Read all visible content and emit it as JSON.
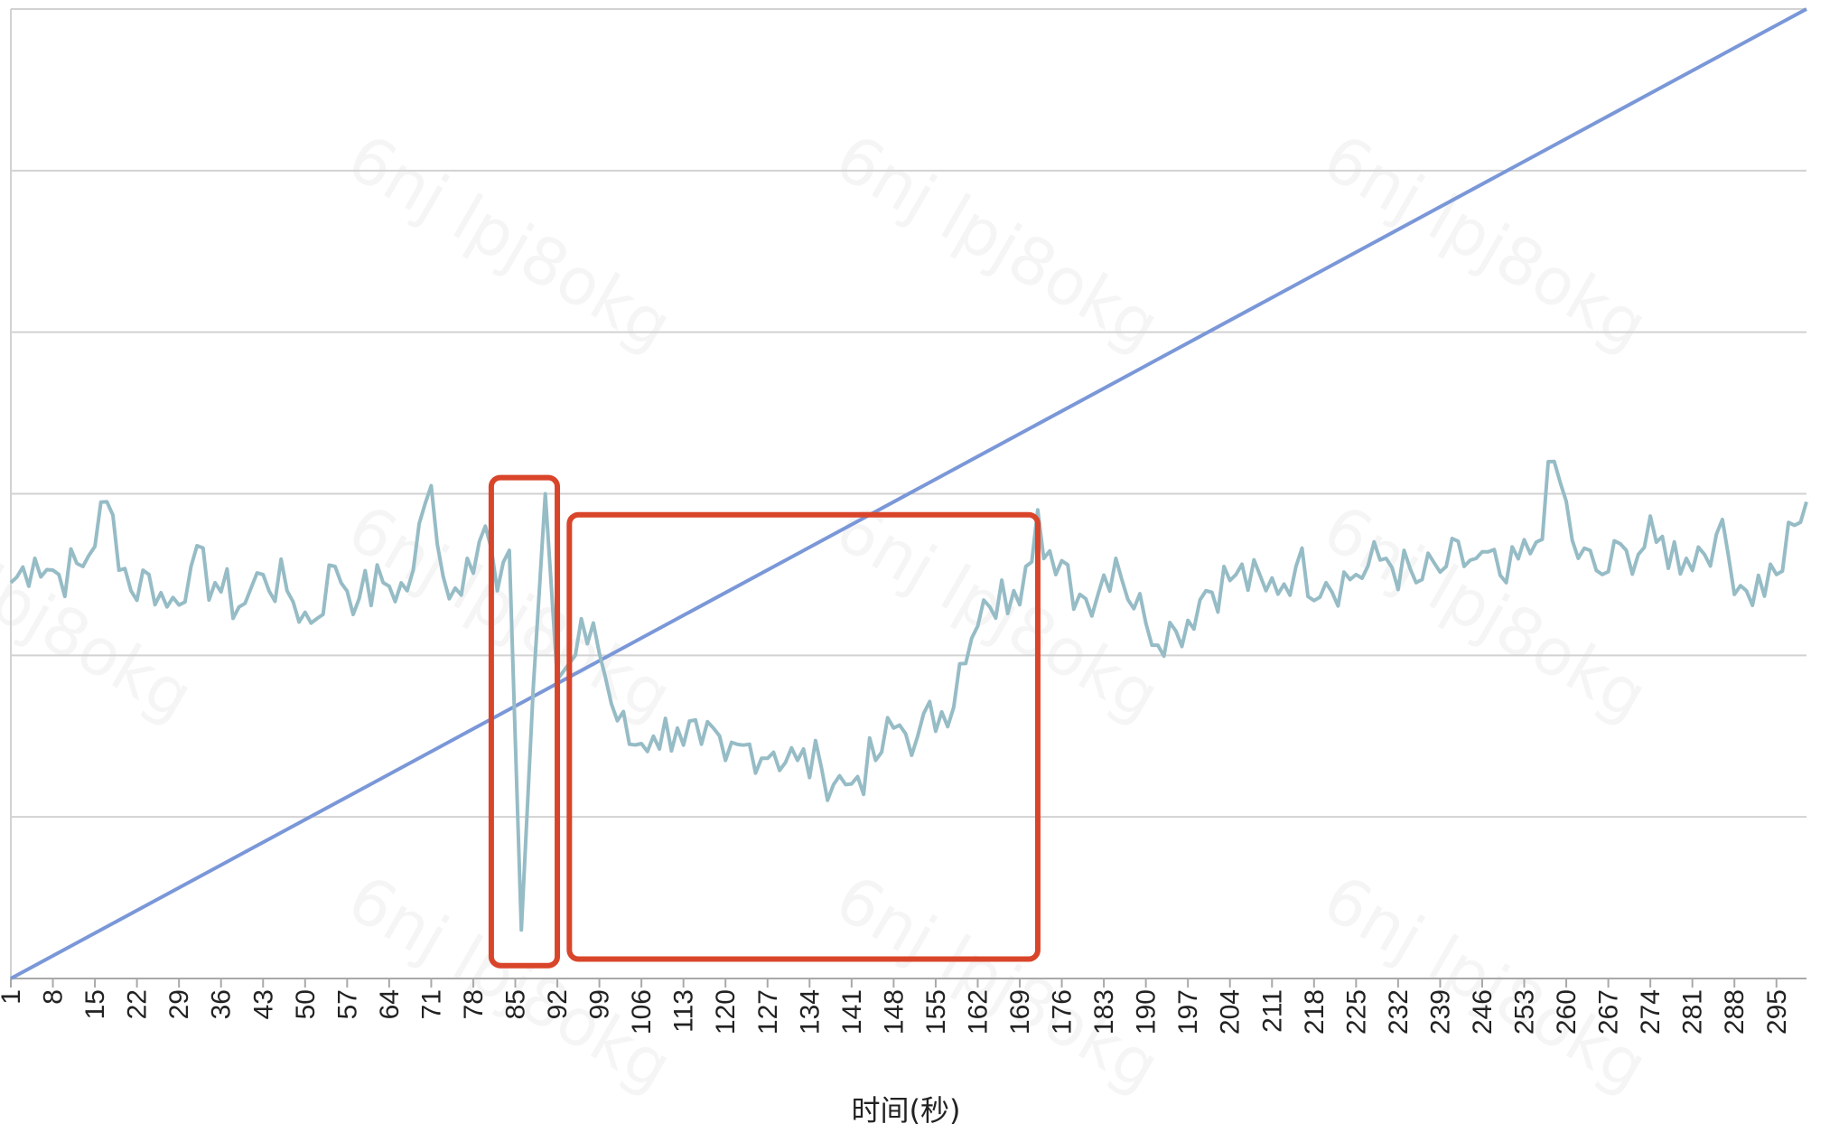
{
  "chart_data": {
    "type": "line",
    "xlabel": "时间(秒)",
    "ylabel": "",
    "x_ticks": [
      1,
      8,
      15,
      22,
      29,
      36,
      43,
      50,
      57,
      64,
      71,
      78,
      85,
      92,
      99,
      106,
      113,
      120,
      127,
      134,
      141,
      148,
      155,
      162,
      169,
      176,
      183,
      190,
      197,
      204,
      211,
      218,
      225,
      232,
      239,
      246,
      253,
      260,
      267,
      274,
      281,
      288,
      295
    ],
    "x_range": [
      1,
      300
    ],
    "ylim": [
      0,
      6
    ],
    "gridlines": 6,
    "grid": "horizontal",
    "series": [
      {
        "color": "#7a97d8",
        "x": [
          1,
          300
        ],
        "y": [
          0,
          6
        ]
      },
      {
        "color": "#96bcc6",
        "x": [
          1,
          5,
          9,
          13,
          17,
          21,
          24,
          27,
          31,
          35,
          39,
          43,
          47,
          51,
          55,
          59,
          63,
          67,
          71,
          74,
          77,
          80,
          82,
          84,
          86,
          88,
          90,
          92,
          95,
          98,
          101,
          104,
          108,
          112,
          116,
          120,
          124,
          128,
          132,
          136,
          140,
          142,
          145,
          148,
          152,
          156,
          160,
          164,
          168,
          170,
          172,
          175,
          180,
          185,
          190,
          195,
          200,
          205,
          210,
          215,
          220,
          225,
          230,
          235,
          240,
          245,
          250,
          255,
          258,
          262,
          266,
          270,
          275,
          280,
          285,
          290,
          295,
          300
        ],
        "y": [
          2.45,
          2.6,
          2.5,
          2.55,
          2.95,
          2.4,
          2.5,
          2.3,
          2.55,
          2.45,
          2.3,
          2.5,
          2.4,
          2.2,
          2.55,
          2.35,
          2.45,
          2.4,
          3.05,
          2.35,
          2.6,
          2.8,
          2.4,
          2.65,
          0.3,
          1.8,
          3.0,
          1.85,
          2.0,
          2.2,
          1.7,
          1.45,
          1.5,
          1.55,
          1.45,
          1.35,
          1.45,
          1.4,
          1.35,
          1.3,
          1.2,
          1.25,
          1.35,
          1.55,
          1.5,
          1.65,
          1.95,
          2.3,
          2.4,
          2.55,
          2.9,
          2.5,
          2.35,
          2.6,
          2.2,
          2.15,
          2.4,
          2.5,
          2.4,
          2.55,
          2.45,
          2.5,
          2.6,
          2.45,
          2.55,
          2.6,
          2.45,
          2.7,
          3.2,
          2.6,
          2.5,
          2.65,
          2.7,
          2.6,
          2.75,
          2.4,
          2.5,
          2.95
        ]
      }
    ],
    "highlight_boxes": [
      {
        "x": [
          81,
          92
        ],
        "y": [
          0.08,
          3.1
        ]
      },
      {
        "x": [
          94,
          172
        ],
        "y": [
          0.12,
          2.87
        ]
      }
    ]
  }
}
